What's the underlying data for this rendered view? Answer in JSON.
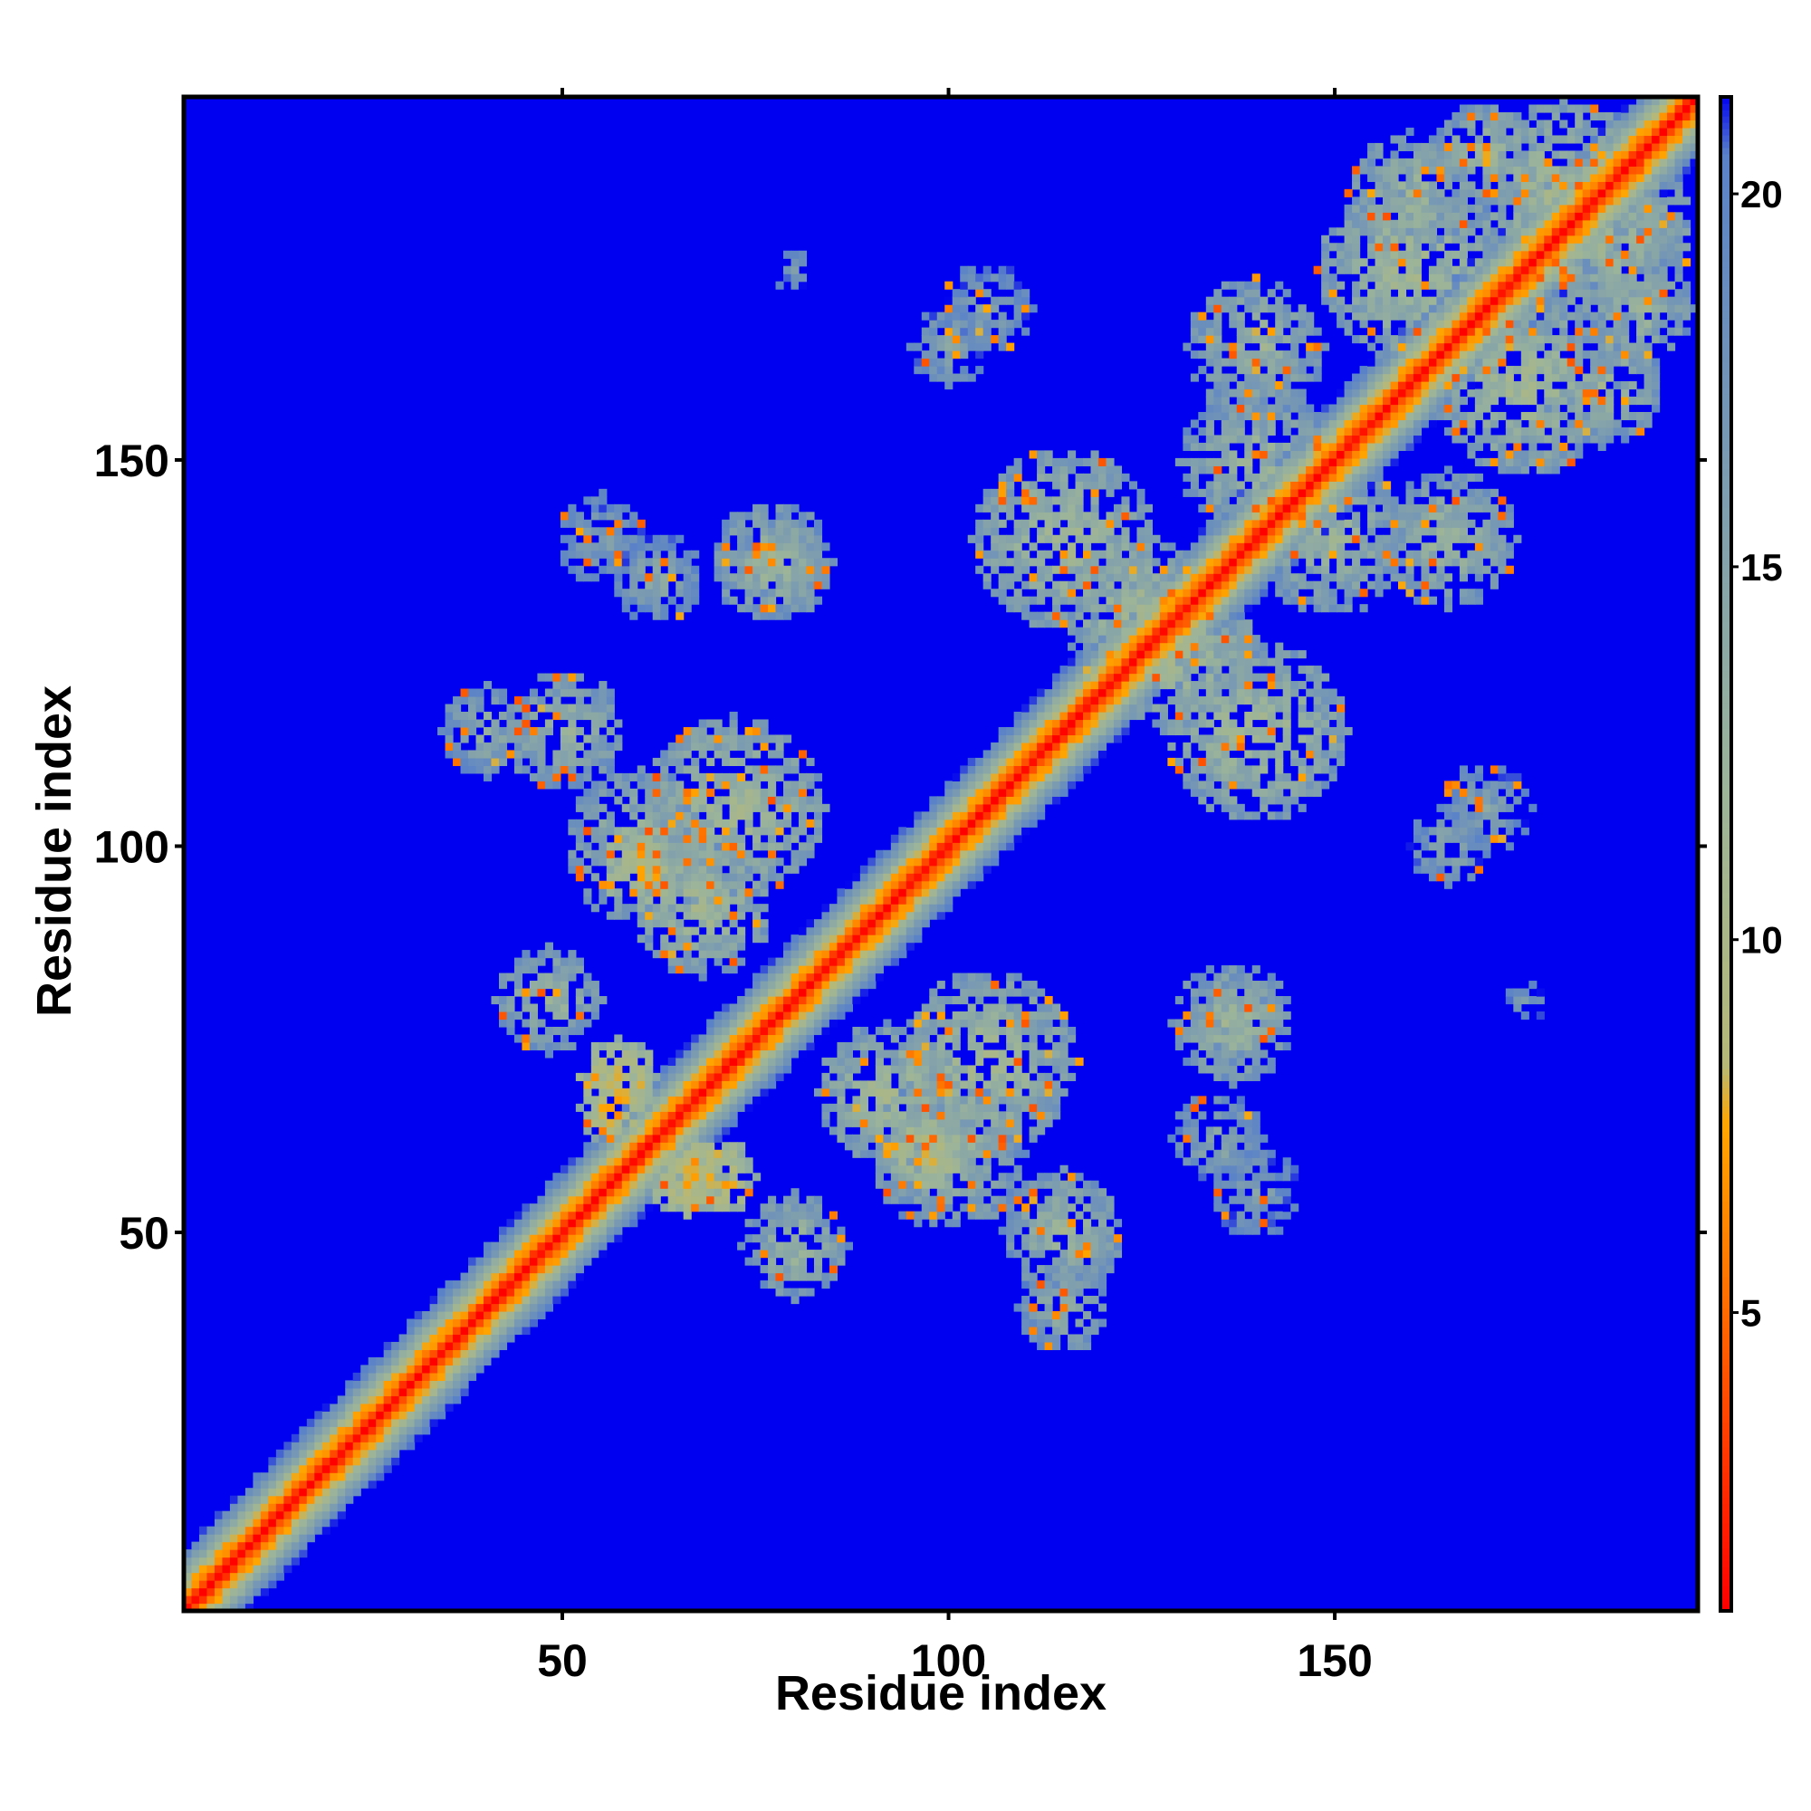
{
  "chart_data": {
    "type": "heatmap",
    "title": "",
    "xlabel": "Residue index",
    "ylabel": "Residue index",
    "n_residues": 197,
    "xlim": [
      1,
      197
    ],
    "ylim": [
      1,
      197
    ],
    "x_ticks": [
      50,
      100,
      150
    ],
    "y_ticks": [
      50,
      100,
      150
    ],
    "colorbar": {
      "range": [
        1,
        21.3
      ],
      "ticks": [
        5,
        10,
        15,
        20
      ],
      "stops": [
        {
          "value": 1,
          "color": "#ff0000"
        },
        {
          "value": 5,
          "color": "#ff6a00"
        },
        {
          "value": 7.5,
          "color": "#ffa500"
        },
        {
          "value": 8.3,
          "color": "#b5b878"
        },
        {
          "value": 12,
          "color": "#9cb49a"
        },
        {
          "value": 20.5,
          "color": "#5a82c8"
        },
        {
          "value": 21.3,
          "color": "#0000f0"
        }
      ]
    },
    "background_value": 22,
    "background_color": "#0000f0",
    "diagonal": {
      "band_halfwidth": 3,
      "value_on_diagonal": 1
    },
    "contact_clusters": [
      {
        "i": 40,
        "j": 115,
        "radius": 6,
        "value": 13
      },
      {
        "i": 60,
        "j": 100,
        "radius": 10,
        "value": 12
      },
      {
        "i": 68,
        "j": 92,
        "radius": 9,
        "value": 11
      },
      {
        "i": 57,
        "j": 66,
        "radius": 5,
        "value": 7
      },
      {
        "i": 70,
        "j": 57,
        "radius": 5,
        "value": 7
      },
      {
        "i": 48,
        "j": 80,
        "radius": 7,
        "value": 12
      },
      {
        "i": 78,
        "j": 137,
        "radius": 6,
        "value": 12
      },
      {
        "i": 62,
        "j": 135,
        "radius": 6,
        "value": 14
      },
      {
        "i": 105,
        "j": 72,
        "radius": 12,
        "value": 11
      },
      {
        "i": 115,
        "j": 50,
        "radius": 8,
        "value": 12
      },
      {
        "i": 97,
        "j": 60,
        "radius": 5,
        "value": 8
      },
      {
        "i": 137,
        "j": 77,
        "radius": 8,
        "value": 12
      },
      {
        "i": 140,
        "j": 55,
        "radius": 6,
        "value": 15
      },
      {
        "i": 115,
        "j": 140,
        "radius": 12,
        "value": 11
      },
      {
        "i": 130,
        "j": 125,
        "radius": 10,
        "value": 11
      },
      {
        "i": 140,
        "j": 150,
        "radius": 10,
        "value": 12
      },
      {
        "i": 165,
        "j": 140,
        "radius": 9,
        "value": 12
      },
      {
        "i": 170,
        "j": 105,
        "radius": 6,
        "value": 15
      },
      {
        "i": 175,
        "j": 160,
        "radius": 12,
        "value": 11
      },
      {
        "i": 180,
        "j": 185,
        "radius": 12,
        "value": 11
      },
      {
        "i": 160,
        "j": 185,
        "radius": 8,
        "value": 12
      },
      {
        "i": 190,
        "j": 170,
        "radius": 7,
        "value": 12
      },
      {
        "i": 100,
        "j": 165,
        "radius": 5,
        "value": 14
      },
      {
        "i": 80,
        "j": 175,
        "radius": 3,
        "value": 16
      }
    ]
  }
}
